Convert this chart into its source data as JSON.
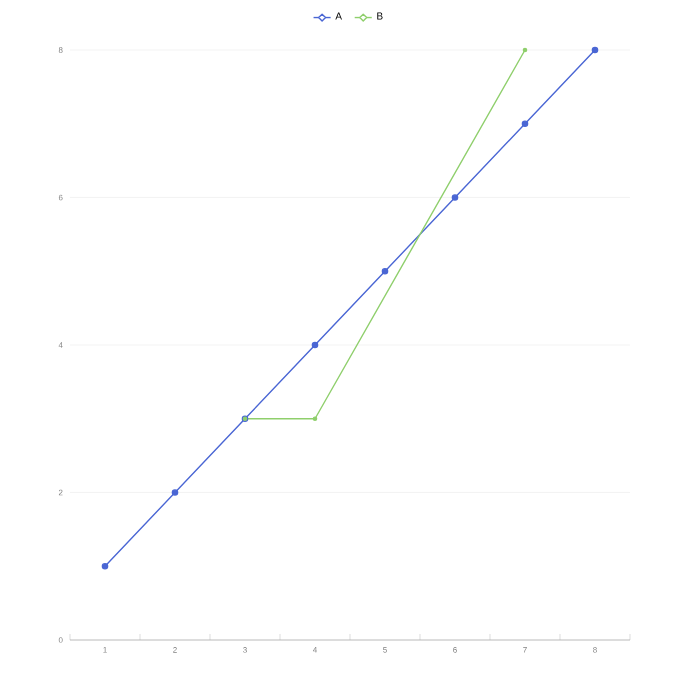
{
  "chart_data": {
    "type": "line",
    "legend": "top",
    "grid": "y",
    "marker": "circle",
    "line_style": "solid",
    "xlim": [
      0.5,
      8.5
    ],
    "xticks": [
      1,
      2,
      3,
      4,
      5,
      6,
      7,
      8,
      {
        "value": 0.5,
        "label": null
      },
      {
        "value": 1.5,
        "label": null
      },
      {
        "value": 2.5,
        "label": null
      },
      {
        "value": 3.5,
        "label": null
      },
      {
        "value": 4.5,
        "label": null
      },
      {
        "value": 5.5,
        "label": null
      },
      {
        "value": 6.5,
        "label": null
      },
      {
        "value": 7.5,
        "label": null
      },
      {
        "value": 8.5,
        "label": null
      }
    ],
    "ylim": [
      0,
      8
    ],
    "yticks": [
      0,
      2,
      4,
      6,
      8
    ],
    "series": [
      {
        "name": "A",
        "color": "#4a66d4",
        "x": [
          1,
          2,
          3,
          4,
          5,
          6,
          7,
          8
        ],
        "values": [
          1,
          2,
          3,
          4,
          5,
          6,
          7,
          8
        ]
      },
      {
        "name": "B",
        "color": "#8fcf6c",
        "x": [
          3,
          4,
          7
        ],
        "values": [
          3,
          3,
          8
        ]
      }
    ]
  }
}
